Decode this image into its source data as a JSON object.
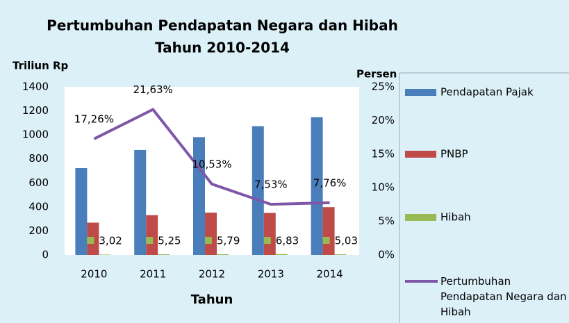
{
  "chart_data": {
    "type": "bar",
    "title": "Pertumbuhan Pendapatan Negara dan Hibah",
    "subtitle": "Tahun 2010-2014",
    "y_label": "Triliun Rp",
    "y2_label": "Persen",
    "x_label": "Tahun",
    "categories": [
      "2010",
      "2011",
      "2012",
      "2013",
      "2014"
    ],
    "ylim": [
      0,
      1400
    ],
    "yticks": [
      0,
      200,
      400,
      600,
      800,
      1000,
      1200,
      1400
    ],
    "y2lim": [
      0,
      25
    ],
    "y2ticks": [
      {
        "value": 0,
        "label": "0%"
      },
      {
        "value": 5,
        "label": "5%"
      },
      {
        "value": 10,
        "label": "10%"
      },
      {
        "value": 15,
        "label": "15%"
      },
      {
        "value": 20,
        "label": "20%"
      },
      {
        "value": 25,
        "label": "25%"
      }
    ],
    "legend": "right",
    "series": [
      {
        "name": "Pendapatan Pajak",
        "color": "#4a7ebb",
        "values": [
          723,
          874,
          981,
          1072,
          1147
        ]
      },
      {
        "name": "PNBP",
        "color": "#be4b48",
        "values": [
          269,
          331,
          352,
          350,
          398
        ]
      },
      {
        "name": "Hibah",
        "color": "#98b954",
        "values": [
          3.02,
          5.25,
          5.79,
          6.83,
          5.03
        ],
        "value_labels": [
          "3,02",
          "5,25",
          "5,79",
          "6,83",
          "5,03"
        ]
      },
      {
        "name": "Pertumbuhan Pendapatan Negara dan Hibah",
        "type": "line",
        "axis": "y2",
        "color": "#7e57a8",
        "values": [
          17.26,
          21.63,
          10.53,
          7.53,
          7.76
        ],
        "value_labels": [
          "17,26%",
          "21,63%",
          "10,53%",
          "7,53%",
          "7,76%"
        ]
      }
    ]
  }
}
